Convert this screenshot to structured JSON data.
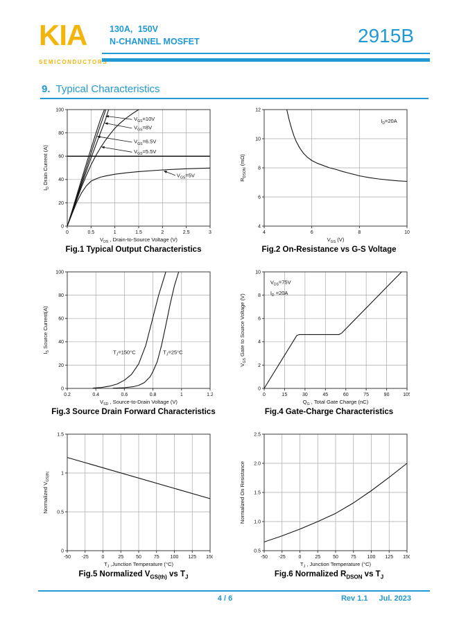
{
  "colors": {
    "accent_cyan": "#2199d3",
    "logo_gold": "#f2b50d",
    "curve_black": "#141414",
    "grid_gray": "#a8a8a8"
  },
  "header": {
    "logo": "KIA",
    "logo_subtitle": "SEMICONDUCTORS",
    "rating": "130A, 150V",
    "device_type": "N-CHANNEL MOSFET",
    "part_number": "2915B"
  },
  "section": {
    "number": "9.",
    "title": "Typical Characteristics"
  },
  "footer": {
    "page": "4 / 6",
    "rev": "Rev 1.1",
    "date": "Jul. 2023"
  },
  "figures": [
    {
      "caption": "Fig.1 Typical Output Characteristics",
      "chart_data": {
        "type": "line",
        "xlabel": "V~DS~ , Drain-to-Source Voltage (V)",
        "ylabel": "I~D~ Drain Current (A)",
        "xlim": [
          0,
          3
        ],
        "ylim": [
          0,
          100
        ],
        "xticks": [
          0,
          0.5,
          1,
          1.5,
          2,
          2.5,
          3
        ],
        "xtick_labels": [
          "0",
          "0.5",
          "1",
          "1.5",
          "2",
          "2.5",
          "3"
        ],
        "yticks": [
          0,
          20,
          40,
          60,
          80,
          100
        ],
        "ytick_labels": [
          "0",
          "20",
          "40",
          "60",
          "80",
          "100"
        ],
        "strong_hgrid": [
          60
        ],
        "series": [
          {
            "name": "VGS=10V",
            "points": [
              [
                0,
                0
              ],
              [
                0.1,
                13
              ],
              [
                0.2,
                26.5
              ],
              [
                0.3,
                40
              ],
              [
                0.4,
                53.5
              ],
              [
                0.5,
                66.5
              ],
              [
                0.6,
                79.5
              ],
              [
                0.7,
                92
              ],
              [
                0.78,
                100
              ]
            ]
          },
          {
            "name": "VGS=8V",
            "points": [
              [
                0,
                0
              ],
              [
                0.1,
                12.5
              ],
              [
                0.2,
                25
              ],
              [
                0.3,
                37.5
              ],
              [
                0.4,
                50
              ],
              [
                0.5,
                62.5
              ],
              [
                0.6,
                75
              ],
              [
                0.7,
                87
              ],
              [
                0.81,
                100
              ]
            ]
          },
          {
            "name": "VGS=6.5V",
            "points": [
              [
                0,
                0
              ],
              [
                0.1,
                12
              ],
              [
                0.2,
                24
              ],
              [
                0.3,
                35.5
              ],
              [
                0.4,
                47
              ],
              [
                0.5,
                58.5
              ],
              [
                0.6,
                69.5
              ],
              [
                0.7,
                80.5
              ],
              [
                0.8,
                91
              ],
              [
                0.87,
                100
              ]
            ]
          },
          {
            "name": "VGS=5.5V",
            "points": [
              [
                0,
                0
              ],
              [
                0.1,
                11.5
              ],
              [
                0.2,
                22.5
              ],
              [
                0.3,
                33.5
              ],
              [
                0.4,
                43.5
              ],
              [
                0.5,
                52.5
              ],
              [
                0.6,
                60.5
              ],
              [
                0.7,
                67.5
              ],
              [
                0.8,
                73.5
              ],
              [
                0.9,
                79
              ],
              [
                1,
                84
              ],
              [
                1.1,
                88
              ],
              [
                1.2,
                91.5
              ],
              [
                1.35,
                96
              ],
              [
                1.5,
                100
              ]
            ]
          },
          {
            "name": "VGS=5V",
            "points": [
              [
                0,
                0
              ],
              [
                0.1,
                10.5
              ],
              [
                0.2,
                20.5
              ],
              [
                0.3,
                28.5
              ],
              [
                0.4,
                34.5
              ],
              [
                0.5,
                38.5
              ],
              [
                0.6,
                40.5
              ],
              [
                0.7,
                42
              ],
              [
                0.8,
                43
              ],
              [
                1,
                44.5
              ],
              [
                1.25,
                45.8
              ],
              [
                1.5,
                46.8
              ],
              [
                2,
                48.2
              ],
              [
                2.5,
                49.2
              ],
              [
                3,
                49.8
              ]
            ]
          }
        ],
        "annotations": [
          {
            "text": "V~GS~=10V",
            "x": 1.4,
            "y": 90.5,
            "anchor": "start",
            "arrow": {
              "from": [
                1.36,
                91.5
              ],
              "to": [
                0.8,
                94.5
              ]
            }
          },
          {
            "text": "V~GS~=8V",
            "x": 1.4,
            "y": 83,
            "anchor": "start",
            "arrow": {
              "from": [
                1.36,
                84
              ],
              "to": [
                0.78,
                88.5
              ]
            }
          },
          {
            "text": "V~GS~=6.5V",
            "x": 1.4,
            "y": 71,
            "anchor": "start",
            "arrow": {
              "from": [
                1.36,
                72
              ],
              "to": [
                0.62,
                77
              ]
            }
          },
          {
            "text": "V~GS~=5.5V",
            "x": 1.4,
            "y": 62.5,
            "anchor": "start",
            "arrow": {
              "from": [
                1.36,
                63.5
              ],
              "to": [
                0.71,
                68
              ]
            }
          },
          {
            "text": "V~GS~=5V",
            "x": 2.3,
            "y": 42,
            "anchor": "start",
            "arrow": {
              "from": [
                2.27,
                43.5
              ],
              "to": [
                2.02,
                47.5
              ]
            }
          }
        ]
      }
    },
    {
      "caption": "Fig.2 On-Resistance vs G-S Voltage",
      "chart_data": {
        "type": "line",
        "xlabel": "V~GS~ (V)",
        "ylabel": "R~DSON~ (mΩ)",
        "xlim": [
          4,
          10
        ],
        "ylim": [
          4,
          12
        ],
        "xticks": [
          4,
          6,
          8,
          10
        ],
        "xtick_labels": [
          "4",
          "6",
          "8",
          "10"
        ],
        "yticks": [
          4,
          6,
          8,
          10,
          12
        ],
        "ytick_labels": [
          "4",
          "6",
          "8",
          "10",
          "12"
        ],
        "series": [
          {
            "name": "RDSON",
            "points": [
              [
                4.95,
                12
              ],
              [
                5.05,
                11.3
              ],
              [
                5.15,
                10.7
              ],
              [
                5.25,
                10.2
              ],
              [
                5.35,
                9.8
              ],
              [
                5.5,
                9.35
              ],
              [
                5.65,
                9.0
              ],
              [
                5.8,
                8.75
              ],
              [
                6,
                8.5
              ],
              [
                6.25,
                8.3
              ],
              [
                6.5,
                8.15
              ],
              [
                6.75,
                8.0
              ],
              [
                7,
                7.9
              ],
              [
                7.3,
                7.75
              ],
              [
                7.6,
                7.62
              ],
              [
                8,
                7.45
              ],
              [
                8.4,
                7.33
              ],
              [
                8.8,
                7.24
              ],
              [
                9.2,
                7.17
              ],
              [
                9.6,
                7.11
              ],
              [
                10,
                7.07
              ]
            ]
          }
        ],
        "annotations": [
          {
            "text": "I~D~=20A",
            "x": 8.9,
            "y": 11.1,
            "anchor": "start"
          }
        ]
      }
    },
    {
      "caption": "Fig.3 Source Drain Forward Characteristics",
      "chart_data": {
        "type": "line",
        "xlabel": "V~SD~ , Source-to-Drain Voltage (V)",
        "ylabel": "I~S~ Source Current(A)",
        "xlim": [
          0.2,
          1.2
        ],
        "ylim": [
          0,
          100
        ],
        "xticks": [
          0.2,
          0.4,
          0.6,
          0.8,
          1,
          1.2
        ],
        "xtick_labels": [
          "0.2",
          "0.4",
          "0.6",
          "0.8",
          "1",
          "1.2"
        ],
        "yticks": [
          0,
          20,
          40,
          60,
          80,
          100
        ],
        "ytick_labels": [
          "0",
          "20",
          "40",
          "60",
          "80",
          "100"
        ],
        "series": [
          {
            "name": "TJ=150C",
            "points": [
              [
                0.38,
                0.3
              ],
              [
                0.44,
                0.8
              ],
              [
                0.5,
                2
              ],
              [
                0.55,
                3.8
              ],
              [
                0.6,
                7
              ],
              [
                0.65,
                12
              ],
              [
                0.7,
                21
              ],
              [
                0.75,
                37
              ],
              [
                0.8,
                61
              ],
              [
                0.84,
                80
              ],
              [
                0.88,
                96
              ],
              [
                0.89,
                100
              ]
            ]
          },
          {
            "name": "TJ=25C",
            "points": [
              [
                0.52,
                0.2
              ],
              [
                0.6,
                0.6
              ],
              [
                0.66,
                1.4
              ],
              [
                0.7,
                2.6
              ],
              [
                0.74,
                5
              ],
              [
                0.78,
                10
              ],
              [
                0.8,
                14.5
              ],
              [
                0.83,
                23
              ],
              [
                0.86,
                37
              ],
              [
                0.89,
                54
              ],
              [
                0.92,
                72
              ],
              [
                0.95,
                88
              ],
              [
                0.98,
                100
              ]
            ]
          }
        ],
        "annotations": [
          {
            "text": "T~J~=150°C",
            "x": 0.6,
            "y": 29.5,
            "anchor": "middle"
          },
          {
            "text": "T~J~=25°C",
            "x": 0.94,
            "y": 29.5,
            "anchor": "middle"
          }
        ]
      }
    },
    {
      "caption": "Fig.4 Gate-Charge Characteristics",
      "chart_data": {
        "type": "line",
        "xlabel": "Q~G~ , Total Gate Charge (nC)",
        "ylabel": "V~GS~  Gate to Source Voltage (V)",
        "xlim": [
          0,
          105
        ],
        "ylim": [
          0,
          10
        ],
        "xticks": [
          0,
          15,
          30,
          45,
          60,
          75,
          90,
          105
        ],
        "xtick_labels": [
          "0",
          "15",
          "30",
          "45",
          "60",
          "75",
          "90",
          "105"
        ],
        "yticks": [
          0,
          2,
          4,
          6,
          8,
          10
        ],
        "ytick_labels": [
          "0",
          "2",
          "4",
          "6",
          "8",
          "10"
        ],
        "series": [
          {
            "name": "gate-charge",
            "points": [
              [
                0,
                0
              ],
              [
                24,
                4.55
              ],
              [
                26,
                4.62
              ],
              [
                55,
                4.62
              ],
              [
                57,
                4.75
              ],
              [
                101,
                10
              ]
            ]
          }
        ],
        "annotations": [
          {
            "text": "V~DS~=75V",
            "x": 4.5,
            "y": 8.95,
            "anchor": "start"
          },
          {
            "text": "I~D~ =20A",
            "x": 4.5,
            "y": 8.05,
            "anchor": "start"
          }
        ]
      }
    },
    {
      "caption": "Fig.5 Normalized V~GS(th)~ vs T~J~",
      "chart_data": {
        "type": "line",
        "xlabel": "T~J~ ,Junction Temperature (°C)",
        "ylabel": "Normalized V~GS(th)~",
        "xlim": [
          -50,
          150
        ],
        "ylim": [
          0,
          1.5
        ],
        "xticks": [
          -50,
          -25,
          0,
          25,
          50,
          75,
          100,
          125,
          150
        ],
        "xtick_labels": [
          "-50",
          "-25",
          "0",
          "25",
          "50",
          "75",
          "100",
          "125",
          "150"
        ],
        "yticks": [
          0,
          0.5,
          1,
          1.5
        ],
        "ytick_labels": [
          "0",
          "0.5",
          "1",
          "1.5"
        ],
        "series": [
          {
            "name": "VGS(th) normalized",
            "points": [
              [
                -50,
                1.2
              ],
              [
                150,
                0.67
              ]
            ]
          }
        ],
        "annotations": []
      }
    },
    {
      "caption": "Fig.6 Normalized R~DSON~ vs T~J~",
      "chart_data": {
        "type": "line",
        "xlabel": "T~J~ , Junction Temperature (°C)",
        "ylabel": "Normalized On Resistance",
        "xlim": [
          -50,
          150
        ],
        "ylim": [
          0.5,
          2.5
        ],
        "xticks": [
          -50,
          -25,
          0,
          25,
          50,
          75,
          100,
          125,
          150
        ],
        "xtick_labels": [
          "-50",
          "-25",
          "0",
          "25",
          "50",
          "75",
          "100",
          "125",
          "150"
        ],
        "yticks": [
          0.5,
          1,
          1.5,
          2,
          2.5
        ],
        "ytick_labels": [
          "0.5",
          "1.0",
          "1.5",
          "2.0",
          "2.5"
        ],
        "series": [
          {
            "name": "RDSON normalized",
            "points": [
              [
                -50,
                0.65
              ],
              [
                -25,
                0.755
              ],
              [
                0,
                0.87
              ],
              [
                25,
                1.0
              ],
              [
                50,
                1.14
              ],
              [
                75,
                1.32
              ],
              [
                100,
                1.53
              ],
              [
                125,
                1.76
              ],
              [
                150,
                2.0
              ]
            ]
          }
        ],
        "annotations": []
      }
    }
  ]
}
